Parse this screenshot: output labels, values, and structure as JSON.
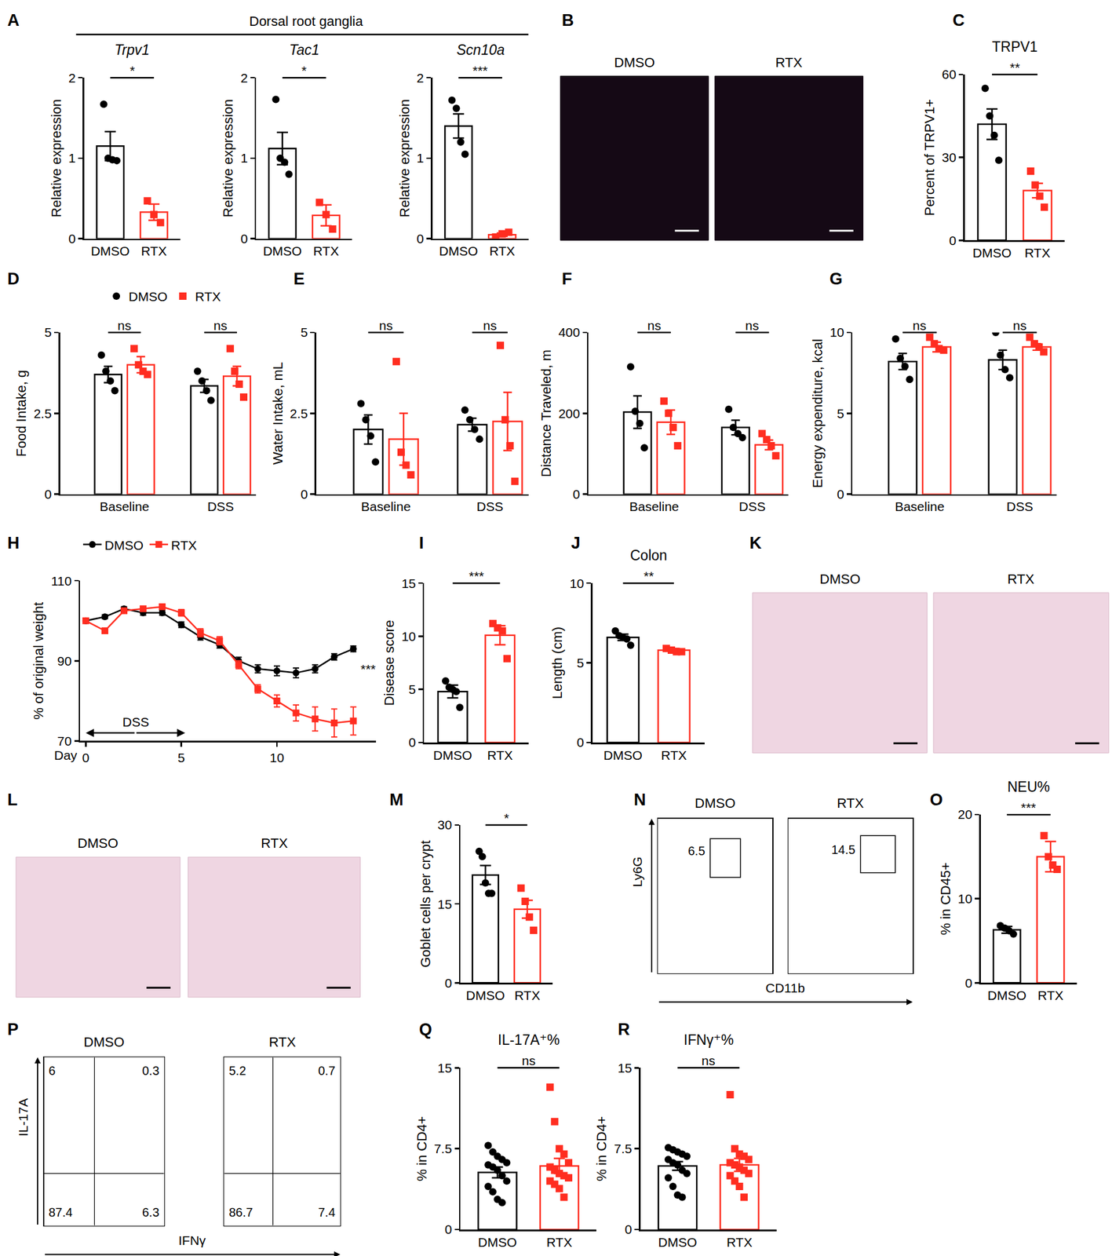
{
  "chart_data": [
    {
      "panel": "A",
      "title": "Dorsal root ganglia",
      "charts": [
        {
          "type": "bar_dot",
          "title": "Trpv1",
          "ylabel": "Relative expression",
          "categories": [
            "DMSO",
            "RTX"
          ],
          "values": [
            1.15,
            0.33
          ],
          "errors": [
            0.18,
            0.1
          ],
          "points": [
            [
              1.67,
              1.0,
              0.98,
              0.97
            ],
            [
              0.47,
              0.3,
              0.2
            ]
          ],
          "colors": [
            "#000000",
            "#ff2d20"
          ],
          "markers": [
            "circle",
            "square"
          ],
          "significance": "*",
          "ylim": [
            0,
            2
          ],
          "yticks": [
            0,
            1,
            2
          ]
        },
        {
          "type": "bar_dot",
          "title": "Tac1",
          "ylabel": "Relative expression",
          "categories": [
            "DMSO",
            "RTX"
          ],
          "values": [
            1.12,
            0.29
          ],
          "errors": [
            0.2,
            0.13
          ],
          "points": [
            [
              1.73,
              1.0,
              0.95,
              0.8
            ],
            [
              0.45,
              0.3,
              0.12
            ]
          ],
          "colors": [
            "#000000",
            "#ff2d20"
          ],
          "markers": [
            "circle",
            "square"
          ],
          "significance": "*",
          "ylim": [
            0,
            2
          ],
          "yticks": [
            0,
            1,
            2
          ]
        },
        {
          "type": "bar_dot",
          "title": "Scn10a",
          "ylabel": "Relative expression",
          "categories": [
            "DMSO",
            "RTX"
          ],
          "values": [
            1.4,
            0.05
          ],
          "errors": [
            0.15,
            0.02
          ],
          "points": [
            [
              1.72,
              1.62,
              1.2,
              1.05
            ],
            [
              0.02,
              0.06,
              0.08
            ]
          ],
          "colors": [
            "#000000",
            "#ff2d20"
          ],
          "markers": [
            "circle",
            "square"
          ],
          "significance": "***",
          "ylim": [
            0,
            2
          ],
          "yticks": [
            0,
            1,
            2
          ]
        }
      ]
    },
    {
      "panel": "B",
      "type": "image",
      "labels": [
        "DMSO",
        "RTX"
      ]
    },
    {
      "panel": "C",
      "type": "bar_dot",
      "title": "TRPV1",
      "ylabel": "Percent of TRPV1+",
      "categories": [
        "DMSO",
        "RTX"
      ],
      "values": [
        42,
        18
      ],
      "errors": [
        5.5,
        2.6
      ],
      "points": [
        [
          55,
          45,
          38,
          29
        ],
        [
          25,
          20,
          16,
          12
        ]
      ],
      "colors": [
        "#000000",
        "#ff2d20"
      ],
      "markers": [
        "circle",
        "square"
      ],
      "significance": "**",
      "ylim": [
        0,
        60
      ],
      "yticks": [
        0,
        30,
        60
      ]
    },
    {
      "panel": "D",
      "type": "grouped_bar_dot",
      "ylabel": "Food Intake, g",
      "categories": [
        "Baseline",
        "DSS"
      ],
      "legend": "top",
      "series": [
        {
          "name": "DMSO",
          "color": "#000000",
          "marker": "circle",
          "values": [
            3.7,
            3.35
          ],
          "errors": [
            0.25,
            0.2
          ],
          "points": [
            [
              4.3,
              3.8,
              3.5,
              3.2
            ],
            [
              3.8,
              3.5,
              3.2,
              2.9
            ]
          ]
        },
        {
          "name": "RTX",
          "color": "#ff2d20",
          "marker": "square",
          "values": [
            4.0,
            3.65
          ],
          "errors": [
            0.25,
            0.3
          ],
          "points": [
            [
              4.5,
              4.0,
              3.8,
              3.7
            ],
            [
              4.5,
              3.8,
              3.4,
              3.0
            ]
          ]
        }
      ],
      "significance": [
        "ns",
        "ns"
      ],
      "ylim": [
        0,
        5
      ],
      "yticks": [
        0,
        2.5,
        5
      ]
    },
    {
      "panel": "E",
      "type": "grouped_bar_dot",
      "ylabel": "Water Intake, mL",
      "categories": [
        "Baseline",
        "DSS"
      ],
      "series": [
        {
          "name": "DMSO",
          "color": "#000000",
          "marker": "circle",
          "values": [
            2.0,
            2.15
          ],
          "errors": [
            0.45,
            0.2
          ],
          "points": [
            [
              2.8,
              2.3,
              1.8,
              1.0
            ],
            [
              2.6,
              2.3,
              2.0,
              1.7
            ]
          ]
        },
        {
          "name": "RTX",
          "color": "#ff2d20",
          "marker": "square",
          "values": [
            1.7,
            2.25
          ],
          "errors": [
            0.8,
            0.9
          ],
          "points": [
            [
              4.1,
              1.3,
              0.9,
              0.6
            ],
            [
              4.6,
              2.3,
              1.5,
              0.4
            ]
          ]
        }
      ],
      "significance": [
        "ns",
        "ns"
      ],
      "ylim": [
        0,
        5
      ],
      "yticks": [
        0,
        2.5,
        5
      ]
    },
    {
      "panel": "F",
      "type": "grouped_bar_dot",
      "ylabel": "Distance Traveled, m",
      "categories": [
        "Baseline",
        "DSS"
      ],
      "series": [
        {
          "name": "DMSO",
          "color": "#000000",
          "marker": "circle",
          "values": [
            203,
            165
          ],
          "errors": [
            40,
            18
          ],
          "points": [
            [
              315,
              205,
              175,
              115
            ],
            [
              210,
              165,
              150,
              140
            ]
          ]
        },
        {
          "name": "RTX",
          "color": "#ff2d20",
          "marker": "square",
          "values": [
            178,
            122
          ],
          "errors": [
            30,
            12
          ],
          "points": [
            [
              230,
              200,
              165,
              120
            ],
            [
              150,
              135,
              120,
              95
            ]
          ]
        }
      ],
      "significance": [
        "ns",
        "ns"
      ],
      "ylim": [
        0,
        400
      ],
      "yticks": [
        0,
        200,
        400
      ]
    },
    {
      "panel": "G",
      "type": "grouped_bar_dot",
      "ylabel": "Energy expenditure, kcal",
      "categories": [
        "Baseline",
        "DSS"
      ],
      "series": [
        {
          "name": "DMSO",
          "color": "#000000",
          "marker": "circle",
          "values": [
            8.2,
            8.3
          ],
          "errors": [
            0.5,
            0.6
          ],
          "points": [
            [
              9.6,
              8.4,
              7.9,
              7.1
            ],
            [
              10,
              8.6,
              7.7,
              7.2
            ]
          ]
        },
        {
          "name": "RTX",
          "color": "#ff2d20",
          "marker": "square",
          "values": [
            9.1,
            9.1
          ],
          "errors": [
            0.3,
            0.2
          ],
          "points": [
            [
              9.7,
              9.3,
              9.0,
              8.9
            ],
            [
              9.7,
              9.3,
              9.1,
              8.8
            ]
          ]
        }
      ],
      "significance": [
        "ns",
        "ns"
      ],
      "ylim": [
        0,
        10
      ],
      "yticks": [
        0,
        5,
        10
      ]
    },
    {
      "panel": "H",
      "type": "line",
      "xlabel": "Day",
      "ylabel": "% of original weight",
      "legend": "top",
      "x": [
        0,
        1,
        2,
        3,
        4,
        5,
        6,
        7,
        8,
        9,
        10,
        11,
        12,
        13,
        14
      ],
      "series": [
        {
          "name": "DMSO",
          "color": "#000000",
          "marker": "circle",
          "values": [
            100,
            101,
            103,
            102,
            102,
            99,
            96,
            94,
            90,
            88,
            87.5,
            87,
            88,
            91,
            93
          ],
          "errors": [
            0.3,
            0.5,
            0.5,
            0.6,
            0.6,
            0.7,
            0.8,
            0.8,
            0.9,
            1,
            1.2,
            1.2,
            1,
            0.8,
            0.7
          ]
        },
        {
          "name": "RTX",
          "color": "#ff2d20",
          "marker": "square",
          "values": [
            100,
            97.5,
            102.5,
            103,
            103.5,
            102,
            97,
            95,
            89,
            83,
            80,
            77,
            75.5,
            74.5,
            75
          ],
          "errors": [
            0.3,
            0.6,
            0.6,
            0.5,
            0.6,
            0.8,
            1,
            1,
            1,
            1,
            1.5,
            2,
            3,
            3.5,
            3.5
          ]
        }
      ],
      "annotations": [
        {
          "text": "DSS",
          "x0": 0,
          "x1": 5.2,
          "y": 72
        }
      ],
      "significance": {
        "text": "***",
        "x": 14,
        "y": 88
      },
      "xlim": [
        -0.3,
        15.2
      ],
      "xticks": [
        0,
        5,
        10
      ],
      "ylim": [
        70,
        110
      ],
      "yticks": [
        70,
        90,
        110
      ]
    },
    {
      "panel": "I",
      "type": "bar_dot",
      "ylabel": "Disease score",
      "categories": [
        "DMSO",
        "RTX"
      ],
      "values": [
        4.8,
        10.1
      ],
      "errors": [
        0.6,
        0.9
      ],
      "points": [
        [
          5.8,
          5.2,
          5.0,
          4.8,
          3.3
        ],
        [
          11.2,
          10.8,
          10.5,
          7.9
        ]
      ],
      "colors": [
        "#000000",
        "#ff2d20"
      ],
      "markers": [
        "circle",
        "square"
      ],
      "significance": "***",
      "ylim": [
        0,
        15
      ],
      "yticks": [
        0,
        5,
        10,
        15
      ]
    },
    {
      "panel": "J",
      "type": "bar_dot",
      "title": "Colon",
      "ylabel": "Length (cm)",
      "categories": [
        "DMSO",
        "RTX"
      ],
      "values": [
        6.6,
        5.8
      ],
      "errors": [
        0.2,
        0.1
      ],
      "points": [
        [
          7.0,
          6.7,
          6.6,
          6.5,
          6.1
        ],
        [
          5.9,
          5.8,
          5.7,
          5.7
        ]
      ],
      "colors": [
        "#000000",
        "#ff2d20"
      ],
      "markers": [
        "circle",
        "square"
      ],
      "significance": "**",
      "ylim": [
        0,
        10
      ],
      "yticks": [
        0,
        5,
        10
      ]
    },
    {
      "panel": "K",
      "type": "image",
      "labels": [
        "DMSO",
        "RTX"
      ]
    },
    {
      "panel": "L",
      "type": "image",
      "labels": [
        "DMSO",
        "RTX"
      ]
    },
    {
      "panel": "M",
      "type": "bar_dot",
      "ylabel": "Goblet cells per crypt",
      "categories": [
        "DMSO",
        "RTX"
      ],
      "values": [
        20.5,
        14
      ],
      "errors": [
        1.8,
        1.7
      ],
      "points": [
        [
          25,
          24,
          19,
          17,
          17
        ],
        [
          18,
          15.5,
          12.5,
          10
        ]
      ],
      "colors": [
        "#000000",
        "#ff2d20"
      ],
      "markers": [
        "circle",
        "square"
      ],
      "significance": "*",
      "ylim": [
        0,
        30
      ],
      "yticks": [
        0,
        15,
        30
      ]
    },
    {
      "panel": "N",
      "type": "flow",
      "xlabel": "CD11b",
      "ylabel": "Ly6G",
      "labels": [
        "DMSO",
        "RTX"
      ],
      "gate_values": [
        6.5,
        14.5
      ],
      "tick_labels": false
    },
    {
      "panel": "O",
      "type": "bar_dot",
      "title": "NEU%",
      "ylabel": "% in CD45+",
      "categories": [
        "DMSO",
        "RTX"
      ],
      "values": [
        6.3,
        15
      ],
      "errors": [
        0.4,
        1.8
      ],
      "points": [
        [
          6.8,
          6.5,
          6.2,
          5.8
        ],
        [
          17.5,
          15,
          14,
          13.5
        ]
      ],
      "colors": [
        "#000000",
        "#ff2d20"
      ],
      "markers": [
        "circle",
        "square"
      ],
      "significance": "***",
      "ylim": [
        0,
        20
      ],
      "yticks": [
        0,
        10,
        20
      ]
    },
    {
      "panel": "P",
      "type": "quadrant_flow",
      "xlabel": "IFNγ",
      "ylabel": "IL-17A",
      "labels": [
        "DMSO",
        "RTX"
      ],
      "quadrant_values": [
        [
          6,
          0.3,
          87.4,
          6.3
        ],
        [
          5.2,
          0.7,
          86.7,
          7.4
        ]
      ],
      "tick_labels": false
    },
    {
      "panel": "Q",
      "type": "bar_dot",
      "title": "IL-17A⁺%",
      "ylabel": "% in CD4+",
      "categories": [
        "DMSO",
        "RTX"
      ],
      "values": [
        5.3,
        5.9
      ],
      "errors": [
        0.5,
        0.7
      ],
      "points": [
        [
          7.8,
          7.2,
          6.8,
          6.5,
          6.2,
          6.0,
          5.8,
          5.5,
          5.0,
          4.5,
          4.0,
          3.5,
          2.8,
          2.5
        ],
        [
          13.2,
          10.0,
          7.5,
          7.0,
          6.2,
          5.8,
          5.5,
          5.2,
          5.0,
          4.8,
          4.5,
          4.2,
          3.8,
          3.0
        ]
      ],
      "colors": [
        "#000000",
        "#ff2d20"
      ],
      "markers": [
        "circle",
        "square"
      ],
      "significance": "ns",
      "ylim": [
        0,
        15
      ],
      "yticks": [
        0,
        7.5,
        15
      ]
    },
    {
      "panel": "R",
      "type": "bar_dot",
      "title": "IFNγ⁺%",
      "ylabel": "% in CD4+",
      "categories": [
        "DMSO",
        "RTX"
      ],
      "values": [
        5.9,
        6.0
      ],
      "errors": [
        0.4,
        0.6
      ],
      "points": [
        [
          7.6,
          7.4,
          7.2,
          7.0,
          6.8,
          6.5,
          6.2,
          6.0,
          5.5,
          5.2,
          4.8,
          4.0,
          3.2,
          3.0
        ],
        [
          12.5,
          7.5,
          7.0,
          6.8,
          6.5,
          6.2,
          6.0,
          5.8,
          5.5,
          5.2,
          5.0,
          4.5,
          4.0,
          3.0
        ]
      ],
      "colors": [
        "#000000",
        "#ff2d20"
      ],
      "markers": [
        "circle",
        "square"
      ],
      "significance": "ns",
      "ylim": [
        0,
        15
      ],
      "yticks": [
        0,
        7.5,
        15
      ]
    }
  ]
}
